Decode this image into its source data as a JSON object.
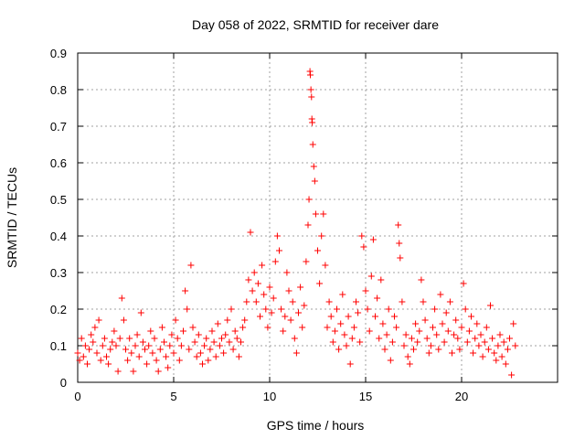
{
  "chart_data": {
    "type": "scatter",
    "title": "Day 058 of 2022, SRMTID for receiver dare",
    "xlabel": "GPS time / hours",
    "ylabel": "SRMTID / TECUs",
    "xlim": [
      0,
      25
    ],
    "ylim": [
      0,
      0.9
    ],
    "x_ticks": [
      0,
      5,
      10,
      15,
      20
    ],
    "x_tick_labels": [
      "0",
      "5",
      "10",
      "15",
      "20"
    ],
    "y_ticks": [
      0,
      0.1,
      0.2,
      0.3,
      0.4,
      0.5,
      0.6,
      0.7,
      0.8,
      0.9
    ],
    "y_tick_labels": [
      "0",
      "0.1",
      "0.2",
      "0.3",
      "0.4",
      "0.5",
      "0.6",
      "0.7",
      "0.8",
      "0.9"
    ],
    "grid": true,
    "marker": "+",
    "series": [
      {
        "name": "SRMTID",
        "color": "#ff0000",
        "points": [
          [
            0.0,
            0.08
          ],
          [
            0.1,
            0.06
          ],
          [
            0.2,
            0.12
          ],
          [
            0.3,
            0.07
          ],
          [
            0.4,
            0.1
          ],
          [
            0.5,
            0.05
          ],
          [
            0.6,
            0.09
          ],
          [
            0.7,
            0.13
          ],
          [
            0.8,
            0.11
          ],
          [
            0.9,
            0.15
          ],
          [
            1.0,
            0.08
          ],
          [
            1.1,
            0.17
          ],
          [
            1.2,
            0.06
          ],
          [
            1.3,
            0.1
          ],
          [
            1.4,
            0.12
          ],
          [
            1.5,
            0.07
          ],
          [
            1.6,
            0.05
          ],
          [
            1.7,
            0.09
          ],
          [
            1.8,
            0.11
          ],
          [
            1.9,
            0.14
          ],
          [
            2.0,
            0.1
          ],
          [
            2.1,
            0.03
          ],
          [
            2.2,
            0.12
          ],
          [
            2.3,
            0.23
          ],
          [
            2.4,
            0.17
          ],
          [
            2.5,
            0.09
          ],
          [
            2.6,
            0.06
          ],
          [
            2.7,
            0.12
          ],
          [
            2.8,
            0.08
          ],
          [
            2.9,
            0.03
          ],
          [
            3.0,
            0.1
          ],
          [
            3.1,
            0.13
          ],
          [
            3.2,
            0.07
          ],
          [
            3.3,
            0.19
          ],
          [
            3.4,
            0.11
          ],
          [
            3.5,
            0.09
          ],
          [
            3.6,
            0.05
          ],
          [
            3.7,
            0.1
          ],
          [
            3.8,
            0.14
          ],
          [
            3.9,
            0.08
          ],
          [
            4.0,
            0.12
          ],
          [
            4.1,
            0.06
          ],
          [
            4.2,
            0.03
          ],
          [
            4.3,
            0.09
          ],
          [
            4.4,
            0.15
          ],
          [
            4.5,
            0.11
          ],
          [
            4.6,
            0.07
          ],
          [
            4.7,
            0.04
          ],
          [
            4.8,
            0.1
          ],
          [
            4.9,
            0.13
          ],
          [
            5.0,
            0.08
          ],
          [
            5.1,
            0.17
          ],
          [
            5.2,
            0.12
          ],
          [
            5.3,
            0.06
          ],
          [
            5.4,
            0.1
          ],
          [
            5.5,
            0.14
          ],
          [
            5.6,
            0.25
          ],
          [
            5.7,
            0.2
          ],
          [
            5.8,
            0.09
          ],
          [
            5.9,
            0.32
          ],
          [
            6.0,
            0.15
          ],
          [
            6.1,
            0.11
          ],
          [
            6.2,
            0.07
          ],
          [
            6.3,
            0.13
          ],
          [
            6.4,
            0.08
          ],
          [
            6.5,
            0.05
          ],
          [
            6.6,
            0.1
          ],
          [
            6.7,
            0.12
          ],
          [
            6.8,
            0.06
          ],
          [
            6.9,
            0.09
          ],
          [
            7.0,
            0.14
          ],
          [
            7.1,
            0.11
          ],
          [
            7.2,
            0.07
          ],
          [
            7.3,
            0.16
          ],
          [
            7.4,
            0.1
          ],
          [
            7.5,
            0.12
          ],
          [
            7.6,
            0.08
          ],
          [
            7.7,
            0.13
          ],
          [
            7.8,
            0.17
          ],
          [
            7.9,
            0.11
          ],
          [
            8.0,
            0.2
          ],
          [
            8.1,
            0.09
          ],
          [
            8.2,
            0.14
          ],
          [
            8.3,
            0.12
          ],
          [
            8.4,
            0.07
          ],
          [
            8.5,
            0.11
          ],
          [
            8.6,
            0.15
          ],
          [
            8.7,
            0.17
          ],
          [
            8.8,
            0.22
          ],
          [
            8.9,
            0.28
          ],
          [
            9.0,
            0.41
          ],
          [
            9.1,
            0.25
          ],
          [
            9.2,
            0.3
          ],
          [
            9.3,
            0.22
          ],
          [
            9.4,
            0.27
          ],
          [
            9.5,
            0.18
          ],
          [
            9.6,
            0.32
          ],
          [
            9.7,
            0.24
          ],
          [
            9.8,
            0.2
          ],
          [
            9.9,
            0.15
          ],
          [
            10.0,
            0.26
          ],
          [
            10.1,
            0.19
          ],
          [
            10.2,
            0.23
          ],
          [
            10.3,
            0.33
          ],
          [
            10.4,
            0.4
          ],
          [
            10.5,
            0.36
          ],
          [
            10.6,
            0.2
          ],
          [
            10.7,
            0.14
          ],
          [
            10.8,
            0.18
          ],
          [
            10.9,
            0.3
          ],
          [
            11.0,
            0.25
          ],
          [
            11.1,
            0.17
          ],
          [
            11.2,
            0.22
          ],
          [
            11.3,
            0.12
          ],
          [
            11.4,
            0.08
          ],
          [
            11.5,
            0.19
          ],
          [
            11.6,
            0.26
          ],
          [
            11.7,
            0.15
          ],
          [
            11.8,
            0.21
          ],
          [
            11.9,
            0.33
          ],
          [
            12.0,
            0.43
          ],
          [
            12.05,
            0.5
          ],
          [
            12.1,
            0.85
          ],
          [
            12.12,
            0.84
          ],
          [
            12.15,
            0.8
          ],
          [
            12.18,
            0.78
          ],
          [
            12.2,
            0.72
          ],
          [
            12.22,
            0.71
          ],
          [
            12.25,
            0.65
          ],
          [
            12.3,
            0.59
          ],
          [
            12.35,
            0.55
          ],
          [
            12.4,
            0.46
          ],
          [
            12.5,
            0.36
          ],
          [
            12.6,
            0.27
          ],
          [
            12.7,
            0.4
          ],
          [
            12.8,
            0.46
          ],
          [
            12.9,
            0.32
          ],
          [
            13.0,
            0.15
          ],
          [
            13.1,
            0.22
          ],
          [
            13.2,
            0.18
          ],
          [
            13.3,
            0.11
          ],
          [
            13.4,
            0.14
          ],
          [
            13.5,
            0.2
          ],
          [
            13.6,
            0.09
          ],
          [
            13.7,
            0.16
          ],
          [
            13.8,
            0.24
          ],
          [
            13.9,
            0.13
          ],
          [
            14.0,
            0.1
          ],
          [
            14.1,
            0.18
          ],
          [
            14.2,
            0.05
          ],
          [
            14.3,
            0.12
          ],
          [
            14.4,
            0.15
          ],
          [
            14.5,
            0.22
          ],
          [
            14.6,
            0.19
          ],
          [
            14.7,
            0.11
          ],
          [
            14.8,
            0.4
          ],
          [
            14.9,
            0.37
          ],
          [
            15.0,
            0.25
          ],
          [
            15.1,
            0.2
          ],
          [
            15.2,
            0.14
          ],
          [
            15.3,
            0.29
          ],
          [
            15.4,
            0.39
          ],
          [
            15.5,
            0.18
          ],
          [
            15.6,
            0.23
          ],
          [
            15.7,
            0.12
          ],
          [
            15.8,
            0.28
          ],
          [
            15.9,
            0.16
          ],
          [
            16.0,
            0.09
          ],
          [
            16.1,
            0.13
          ],
          [
            16.2,
            0.2
          ],
          [
            16.3,
            0.06
          ],
          [
            16.4,
            0.11
          ],
          [
            16.5,
            0.18
          ],
          [
            16.6,
            0.15
          ],
          [
            16.7,
            0.43
          ],
          [
            16.75,
            0.38
          ],
          [
            16.8,
            0.34
          ],
          [
            16.9,
            0.22
          ],
          [
            17.0,
            0.1
          ],
          [
            17.1,
            0.13
          ],
          [
            17.2,
            0.07
          ],
          [
            17.3,
            0.05
          ],
          [
            17.4,
            0.12
          ],
          [
            17.5,
            0.09
          ],
          [
            17.6,
            0.16
          ],
          [
            17.7,
            0.11
          ],
          [
            17.8,
            0.14
          ],
          [
            17.9,
            0.28
          ],
          [
            18.0,
            0.22
          ],
          [
            18.1,
            0.17
          ],
          [
            18.2,
            0.12
          ],
          [
            18.3,
            0.08
          ],
          [
            18.4,
            0.1
          ],
          [
            18.5,
            0.15
          ],
          [
            18.6,
            0.2
          ],
          [
            18.7,
            0.13
          ],
          [
            18.8,
            0.09
          ],
          [
            18.9,
            0.24
          ],
          [
            19.0,
            0.16
          ],
          [
            19.1,
            0.11
          ],
          [
            19.2,
            0.19
          ],
          [
            19.3,
            0.14
          ],
          [
            19.4,
            0.22
          ],
          [
            19.5,
            0.08
          ],
          [
            19.6,
            0.13
          ],
          [
            19.7,
            0.17
          ],
          [
            19.8,
            0.12
          ],
          [
            19.9,
            0.09
          ],
          [
            20.0,
            0.15
          ],
          [
            20.1,
            0.27
          ],
          [
            20.2,
            0.2
          ],
          [
            20.3,
            0.11
          ],
          [
            20.4,
            0.14
          ],
          [
            20.5,
            0.18
          ],
          [
            20.6,
            0.08
          ],
          [
            20.7,
            0.12
          ],
          [
            20.8,
            0.16
          ],
          [
            20.9,
            0.1
          ],
          [
            21.0,
            0.13
          ],
          [
            21.1,
            0.07
          ],
          [
            21.2,
            0.11
          ],
          [
            21.3,
            0.15
          ],
          [
            21.4,
            0.09
          ],
          [
            21.5,
            0.21
          ],
          [
            21.6,
            0.12
          ],
          [
            21.7,
            0.08
          ],
          [
            21.8,
            0.06
          ],
          [
            21.9,
            0.1
          ],
          [
            22.0,
            0.13
          ],
          [
            22.1,
            0.07
          ],
          [
            22.2,
            0.11
          ],
          [
            22.3,
            0.05
          ],
          [
            22.4,
            0.09
          ],
          [
            22.5,
            0.12
          ],
          [
            22.6,
            0.02
          ],
          [
            22.7,
            0.16
          ],
          [
            22.8,
            0.1
          ]
        ]
      }
    ]
  }
}
